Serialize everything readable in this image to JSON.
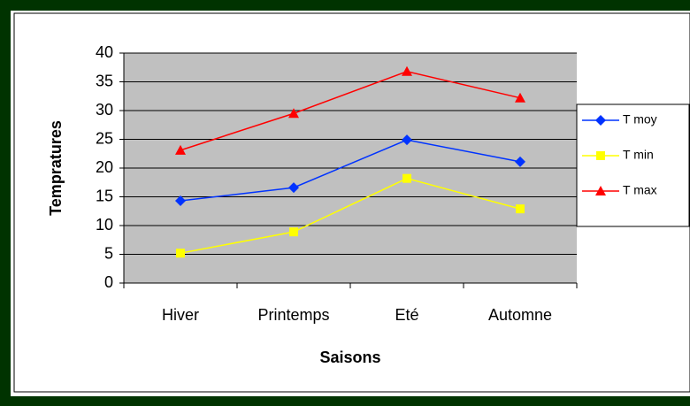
{
  "chart_data": {
    "type": "line",
    "xlabel": "Saisons",
    "ylabel": "Tempratures",
    "categories": [
      "Hiver",
      "Printemps",
      "Eté",
      "Automne"
    ],
    "series": [
      {
        "name": "T moy",
        "color": "#0033ff",
        "values": [
          14.3,
          16.6,
          24.9,
          21.1
        ]
      },
      {
        "name": "T min",
        "color": "#ffff00",
        "values": [
          5.2,
          8.9,
          18.2,
          12.9
        ]
      },
      {
        "name": "T max",
        "color": "#ff0000",
        "values": [
          23.1,
          29.5,
          36.8,
          32.2
        ]
      }
    ],
    "ylim": [
      0,
      40
    ],
    "yticks": [
      0,
      5,
      10,
      15,
      20,
      25,
      30,
      35,
      40
    ],
    "grid": true,
    "legend": "right"
  }
}
